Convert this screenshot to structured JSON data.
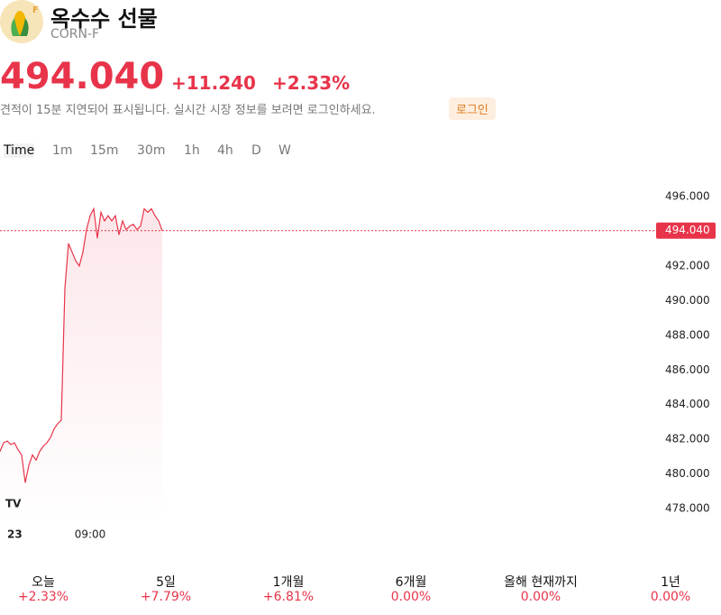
{
  "header": {
    "title": "옥수수 선물",
    "symbol": "CORN-F",
    "badge": "F",
    "price": "494.040",
    "change": "+11.240",
    "change_pct": "+2.33%",
    "notice": "견적이 15분 지연되어 표시됩니다. 실시간 시장 정보를 보려면 로그인하세요.",
    "login": "로그인"
  },
  "intervals": [
    "Time",
    "1m",
    "15m",
    "30m",
    "1h",
    "4h",
    "D",
    "W"
  ],
  "chart_data": {
    "type": "line",
    "color": "#e8344a",
    "categories": [
      null,
      null,
      "23",
      null,
      null,
      null,
      null,
      null,
      null,
      null,
      null,
      null,
      null,
      null,
      null,
      null,
      null,
      null,
      null,
      null,
      null,
      null,
      null,
      null,
      null,
      "09:00",
      null,
      null,
      null,
      null,
      null,
      null,
      null,
      null,
      null,
      null,
      null,
      null,
      null,
      null,
      null,
      null,
      null,
      null,
      null,
      null
    ],
    "values": [
      481.3,
      481.8,
      481.9,
      481.7,
      481.8,
      481.4,
      481.1,
      479.5,
      480.5,
      481.1,
      480.8,
      481.3,
      481.6,
      481.8,
      482.1,
      482.6,
      482.9,
      483.1,
      490.7,
      493.3,
      492.8,
      492.3,
      492.0,
      492.8,
      494.1,
      494.9,
      495.3,
      493.6,
      495.1,
      494.6,
      494.9,
      494.6,
      494.9,
      493.8,
      494.6,
      494.1,
      494.3,
      494.4,
      494.1,
      494.3,
      495.3,
      495.1,
      495.3,
      494.9,
      494.6,
      494.04
    ],
    "ylim": [
      477.17,
      496.94
    ],
    "yticks": [
      {
        "value": 478,
        "label": "478.000"
      },
      {
        "value": 480,
        "label": "480.000"
      },
      {
        "value": 482,
        "label": "482.000"
      },
      {
        "value": 484,
        "label": "484.000"
      },
      {
        "value": 486,
        "label": "486.000"
      },
      {
        "value": 488,
        "label": "488.000"
      },
      {
        "value": 490,
        "label": "490.000"
      },
      {
        "value": 492,
        "label": "492.000"
      },
      {
        "value": 494,
        "label": "494.000"
      },
      {
        "value": 496,
        "label": "496.000"
      }
    ],
    "price_line": {
      "value": 494.04,
      "label": "494.040"
    }
  },
  "periods": [
    {
      "label": "오늘",
      "change": "+2.33%"
    },
    {
      "label": "5일",
      "change": "+7.79%"
    },
    {
      "label": "1개월",
      "change": "+6.81%"
    },
    {
      "label": "6개월",
      "change": "0.00%"
    },
    {
      "label": "올해 현재까지",
      "change": "0.00%"
    },
    {
      "label": "1년",
      "change": "0.00%"
    }
  ]
}
